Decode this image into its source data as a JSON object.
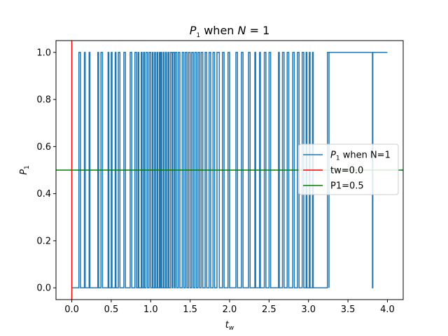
{
  "chart_data": {
    "type": "line",
    "title": {
      "main": "P",
      "sub": "1",
      "rest": " when ",
      "var": "N",
      "eq": " = 1"
    },
    "xlabel": {
      "main": "t",
      "sub": "w"
    },
    "ylabel": {
      "main": "P",
      "sub": "1"
    },
    "xlim": [
      -0.2,
      4.2
    ],
    "ylim": [
      -0.05,
      1.05
    ],
    "xticks": [
      0.0,
      0.5,
      1.0,
      1.5,
      2.0,
      2.5,
      3.0,
      3.5,
      4.0
    ],
    "xtick_labels": [
      "0.0",
      "0.5",
      "1.0",
      "1.5",
      "2.0",
      "2.5",
      "3.0",
      "3.5",
      "4.0"
    ],
    "yticks": [
      0.0,
      0.2,
      0.4,
      0.6,
      0.8,
      1.0
    ],
    "ytick_labels": [
      "0.0",
      "0.2",
      "0.4",
      "0.6",
      "0.8",
      "1.0"
    ],
    "grid": false,
    "legend_placement": "center-right",
    "series": [
      {
        "name": "P1 when N=1",
        "legend_label": {
          "main": "P",
          "sub": "1",
          "rest": " when N=1"
        },
        "color": "#1f77b4",
        "kind": "step",
        "transitions_up": [
          0.09,
          0.16,
          0.22,
          0.33,
          0.37,
          0.46,
          0.5,
          0.55,
          0.59,
          0.66,
          0.74,
          0.8,
          0.84,
          0.88,
          0.91,
          0.94,
          0.98,
          1.02,
          1.05,
          1.08,
          1.11,
          1.13,
          1.16,
          1.19,
          1.22,
          1.25,
          1.28,
          1.31,
          1.35,
          1.4,
          1.44,
          1.48,
          1.52,
          1.56,
          1.6,
          1.64,
          1.69,
          1.74,
          1.79,
          1.84,
          1.91,
          1.98,
          2.08,
          2.15,
          2.24,
          2.32,
          2.38,
          2.44,
          2.5,
          2.62,
          2.67,
          2.73,
          2.8,
          2.86,
          2.92,
          2.97,
          3.01,
          3.05,
          3.24
        ],
        "transitions_down": [
          0.11,
          0.17,
          0.23,
          0.34,
          0.39,
          0.47,
          0.51,
          0.56,
          0.61,
          0.68,
          0.76,
          0.82,
          0.85,
          0.89,
          0.92,
          0.96,
          1.0,
          1.03,
          1.06,
          1.09,
          1.12,
          1.14,
          1.17,
          1.2,
          1.23,
          1.27,
          1.3,
          1.33,
          1.37,
          1.42,
          1.46,
          1.5,
          1.54,
          1.58,
          1.62,
          1.66,
          1.71,
          1.76,
          1.81,
          1.87,
          1.93,
          2.0,
          2.1,
          2.17,
          2.26,
          2.33,
          2.39,
          2.46,
          2.52,
          2.63,
          2.69,
          2.75,
          2.82,
          2.88,
          2.94,
          2.98,
          3.02,
          3.06,
          3.26
        ],
        "spikes_down": [
          3.81
        ],
        "x_start": 0.0,
        "x_end": 4.0
      },
      {
        "name": "tw=0.0",
        "legend_label": {
          "main": "tw=0.0",
          "sub": "",
          "rest": ""
        },
        "color": "#ff0000",
        "kind": "vline",
        "x": 0.0
      },
      {
        "name": "P1=0.5",
        "legend_label": {
          "main": "P1=0.5",
          "sub": "",
          "rest": ""
        },
        "color": "#008000",
        "kind": "hline",
        "y": 0.5
      }
    ]
  }
}
